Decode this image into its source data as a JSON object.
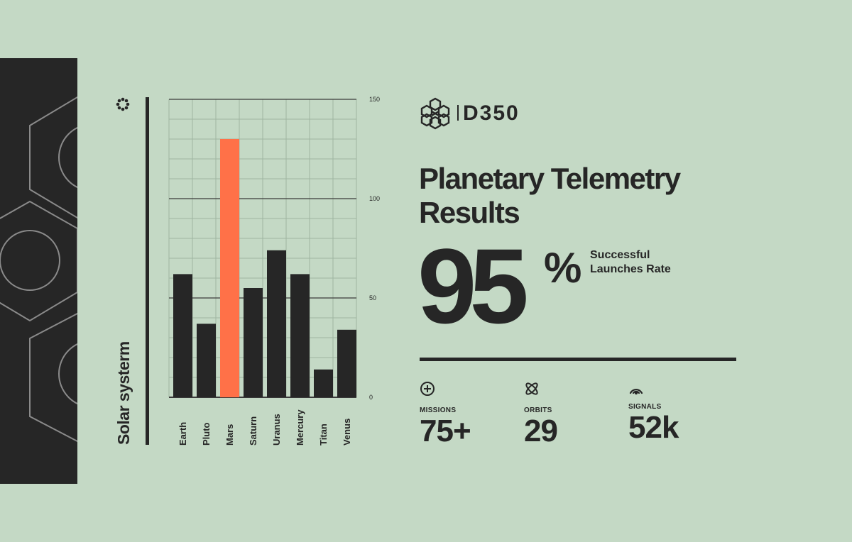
{
  "brand": {
    "name": "D350"
  },
  "headline": {
    "title": "Planetary Telemetry Results"
  },
  "kpi": {
    "value": "95",
    "unit": "%",
    "caption": "Successful Launches Rate"
  },
  "stats": [
    {
      "icon": "crosshair-icon",
      "label": "MISSIONS",
      "value": "75+"
    },
    {
      "icon": "atom-icon",
      "label": "ORBITS",
      "value": "29"
    },
    {
      "icon": "signal-icon",
      "label": "SIGNALS",
      "value": "52k"
    }
  ],
  "colors": {
    "background": "#c4d9c5",
    "bar": "#262626",
    "highlight": "#ff7148",
    "panel": "#262626"
  },
  "chart_data": {
    "type": "bar",
    "xlabel": "Solar systerm",
    "categories": [
      "Earth",
      "Pluto",
      "Mars",
      "Saturn",
      "Uranus",
      "Mercury",
      "Titan",
      "Venus"
    ],
    "values": [
      62,
      37,
      130,
      55,
      74,
      62,
      14,
      34
    ],
    "highlight_index": 2,
    "ylim": [
      0,
      150
    ],
    "yticks": [
      0,
      50,
      100,
      150
    ],
    "grid": true
  }
}
